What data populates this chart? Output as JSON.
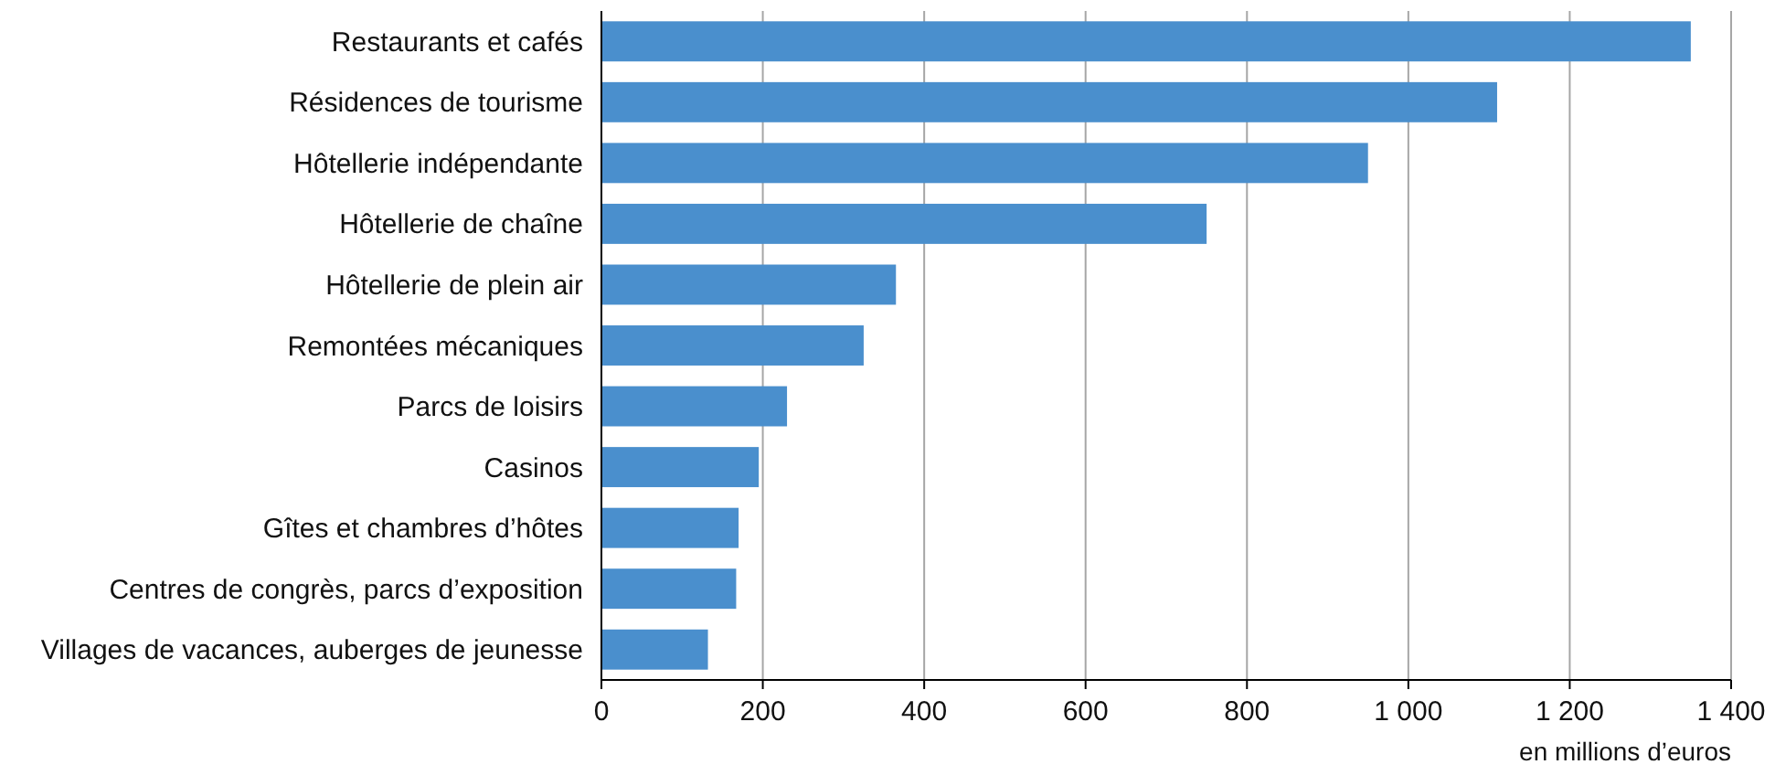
{
  "chart_data": {
    "type": "bar",
    "orientation": "horizontal",
    "categories": [
      "Restaurants et cafés",
      "Résidences de tourisme",
      "Hôtellerie indépendante",
      "Hôtellerie de chaîne",
      "Hôtellerie de plein air",
      "Remontées mécaniques",
      "Parcs de loisirs",
      "Casinos",
      "Gîtes et chambres d’hôtes",
      "Centres de congrès, parcs d’exposition",
      "Villages de vacances, auberges de jeunesse"
    ],
    "values": [
      1350,
      1110,
      950,
      750,
      365,
      325,
      230,
      195,
      170,
      167,
      132
    ],
    "color": "#4a8fcd",
    "xlim": [
      0,
      1400
    ],
    "xticks": [
      0,
      200,
      400,
      600,
      800,
      {
        "value": 1000,
        "label": "1 000"
      },
      {
        "value": 1200,
        "label": "1 200"
      },
      {
        "value": 1400,
        "label": "1 400"
      }
    ],
    "xlabel": "en millions d’euros",
    "grid": "x"
  }
}
